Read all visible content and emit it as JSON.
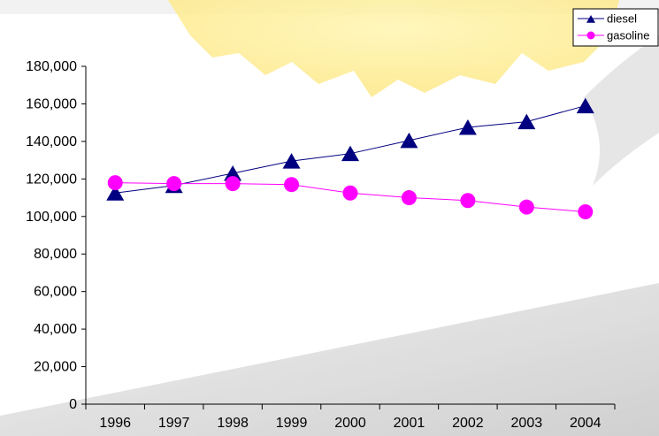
{
  "chart_data": {
    "type": "line",
    "title": "",
    "xlabel": "",
    "ylabel": "",
    "categories": [
      "1996",
      "1997",
      "1998",
      "1999",
      "2000",
      "2001",
      "2002",
      "2003",
      "2004"
    ],
    "ylim": [
      0,
      180000
    ],
    "yticks": [
      0,
      20000,
      40000,
      60000,
      80000,
      100000,
      120000,
      140000,
      160000,
      180000
    ],
    "ytick_labels": [
      "0",
      "20,000",
      "40,000",
      "60,000",
      "80,000",
      "100,000",
      "120,000",
      "140,000",
      "160,000",
      "180,000"
    ],
    "grid": false,
    "legend_position": "top-right",
    "series": [
      {
        "name": "diesel",
        "color": "#000080",
        "marker": "triangle",
        "values": [
          112500,
          116500,
          123000,
          129500,
          133500,
          140500,
          147500,
          150500,
          159000
        ]
      },
      {
        "name": "gasoline",
        "color": "#ff00ff",
        "marker": "circle",
        "values": [
          118000,
          117500,
          117500,
          117000,
          112500,
          110000,
          108500,
          105000,
          102500
        ]
      }
    ]
  }
}
